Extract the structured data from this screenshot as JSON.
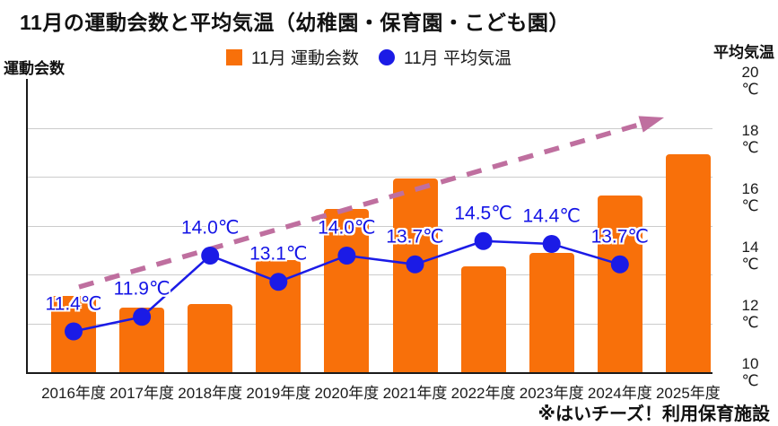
{
  "title": "11月の運動会数と平均気温（幼稚園・保育園・こども園）",
  "axes": {
    "left_title": "運動会数",
    "right_title": "平均気温",
    "right_unit": "℃",
    "x_labels": [
      "2016年度",
      "2017年度",
      "2018年度",
      "2019年度",
      "2020年度",
      "2021年度",
      "2022年度",
      "2023年度",
      "2024年度",
      "2025年度"
    ]
  },
  "legend": {
    "bar_label": "11月 運動会数",
    "line_label": "11月 平均気温"
  },
  "footnote": "※はいチーズ！利用保育施設",
  "colors": {
    "bar": "#f8700a",
    "line": "#1b1be6",
    "temp_label": "#1414e6",
    "trend_arrow": "#bf6f9f",
    "grid": "#cccccc",
    "axis": "#1a1a1a"
  },
  "chart_data": {
    "type": "combo bar+line",
    "title": "11月の運動会数と平均気温（幼稚園・保育園・こども園）",
    "categories": [
      "2016年度",
      "2017年度",
      "2018年度",
      "2019年度",
      "2020年度",
      "2021年度",
      "2022年度",
      "2023年度",
      "2024年度",
      "2025年度"
    ],
    "series": [
      {
        "name": "11月 運動会数",
        "type": "bar",
        "yaxis": "left",
        "axis_note": "left axis (運動会数) shows no numeric tick labels; values estimated in gridline units, 6 gridline intervals spanning full plot height",
        "values_gridline_units": [
          1.56,
          1.32,
          1.4,
          2.3,
          3.34,
          3.97,
          2.17,
          2.44,
          3.62,
          4.46
        ]
      },
      {
        "name": "11月 平均気温",
        "type": "line",
        "yaxis": "right",
        "unit": "℃",
        "values": [
          11.4,
          11.9,
          14.0,
          13.1,
          14.0,
          13.7,
          14.5,
          14.4,
          13.7,
          null
        ],
        "point_labels": [
          "11.4℃",
          "11.9℃",
          "14.0℃",
          "13.1℃",
          "14.0℃",
          "13.7℃",
          "14.5℃",
          "14.4℃",
          "13.7℃"
        ]
      }
    ],
    "right_axis": {
      "min": 10,
      "max": 20,
      "ticks": [
        20,
        18,
        16,
        14,
        12,
        10
      ],
      "unit": "℃"
    },
    "grid": "horizontal gridlines on",
    "legend_position": "top center",
    "annotations": {
      "trend_arrow": "dashed upward diagonal arrow across plot"
    }
  }
}
